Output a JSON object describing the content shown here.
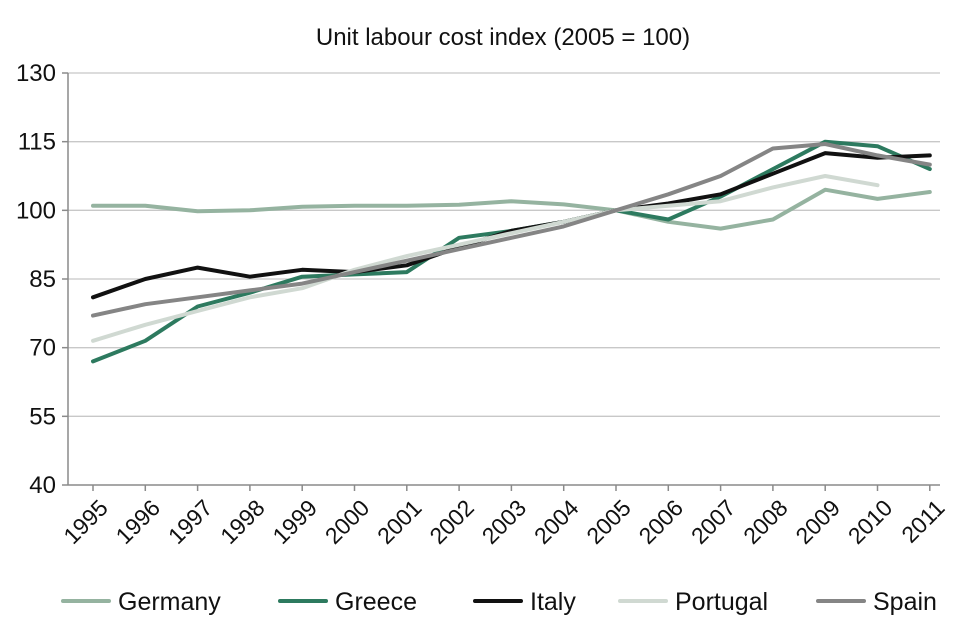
{
  "chart_data": {
    "type": "line",
    "title": "Unit labour cost index (2005 = 100)",
    "xlabel": "",
    "ylabel": "",
    "ylim": [
      40,
      130
    ],
    "yticks": [
      "40",
      "55",
      "70",
      "85",
      "100",
      "115",
      "130"
    ],
    "ytick_values": [
      40,
      55,
      70,
      85,
      100,
      115,
      130
    ],
    "categories": [
      "1995",
      "1996",
      "1997",
      "1998",
      "1999",
      "2000",
      "2001",
      "2002",
      "2003",
      "2004",
      "2005",
      "2006",
      "2007",
      "2008",
      "2009",
      "2010",
      "2011"
    ],
    "legend_position": "bottom",
    "grid": true,
    "series": [
      {
        "name": "Germany",
        "color": "#95b3a0",
        "values": [
          101,
          101,
          99.8,
          100,
          100.8,
          101,
          101,
          101.2,
          102,
          101.3,
          100,
          97.5,
          96,
          98,
          104.5,
          102.5,
          104
        ]
      },
      {
        "name": "Greece",
        "color": "#2d7a5f",
        "values": [
          67,
          71.5,
          79,
          82,
          85.5,
          86,
          86.5,
          94,
          95.5,
          97.5,
          100,
          98,
          103,
          109,
          115,
          114,
          109
        ]
      },
      {
        "name": "Italy",
        "color": "#111111",
        "values": [
          81,
          85,
          87.5,
          85.5,
          87,
          86.5,
          88,
          92,
          95.5,
          97.5,
          100,
          101.5,
          103.5,
          108,
          112.5,
          111.5,
          112
        ]
      },
      {
        "name": "Portugal",
        "color": "#d0d9d2",
        "values": [
          71.5,
          75,
          78,
          81,
          83,
          87,
          90,
          92.5,
          95,
          97.5,
          100,
          101,
          102,
          105,
          107.5,
          105.5,
          null
        ]
      },
      {
        "name": "Spain",
        "color": "#858585",
        "values": [
          77,
          79.5,
          81,
          82.5,
          84,
          86.5,
          89,
          91.5,
          94,
          96.5,
          100,
          103.5,
          107.5,
          113.5,
          114.5,
          112,
          110
        ]
      }
    ]
  }
}
